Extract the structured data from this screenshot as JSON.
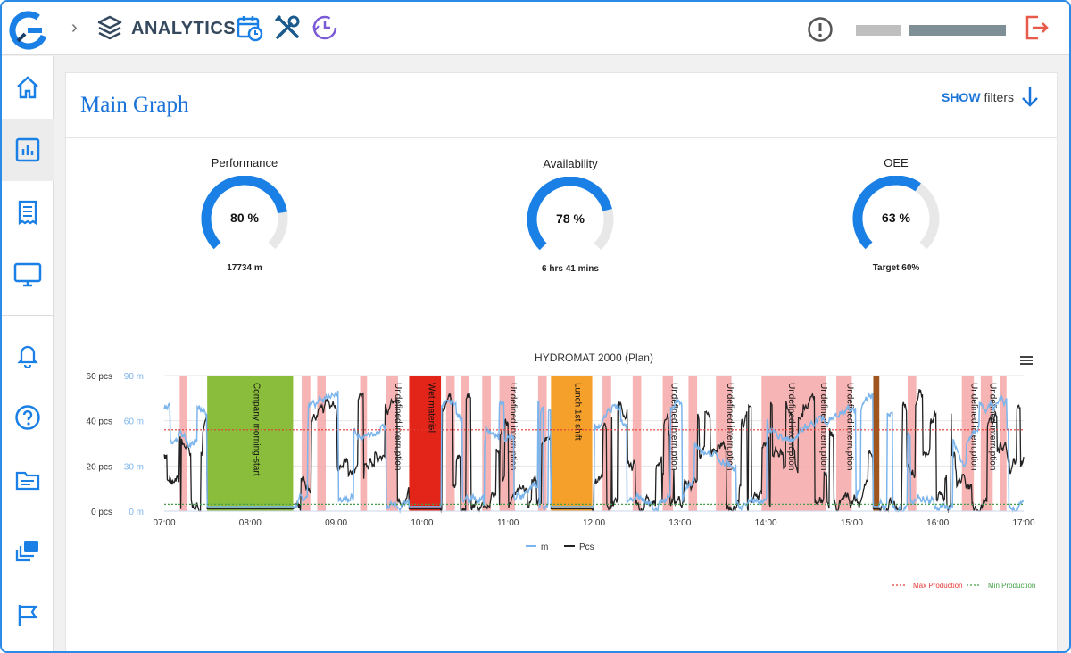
{
  "header": {
    "breadcrumb_arrow": "›",
    "section": "ANALYTICS"
  },
  "card": {
    "title": "Main Graph",
    "filters_show": "SHOW",
    "filters_label": "filters"
  },
  "gauges": [
    {
      "label": "Performance",
      "value": 80,
      "value_text": "80 %",
      "sub": "17734 m"
    },
    {
      "label": "Availability",
      "value": 78,
      "value_text": "78 %",
      "sub": "6 hrs 41 mins"
    },
    {
      "label": "OEE",
      "value": 63,
      "value_text": "63 %",
      "sub": "Target 60%"
    }
  ],
  "colors": {
    "accent": "#1a73d9",
    "gauge_fill": "#1a80e6",
    "gauge_track": "#e8e8e8",
    "series_m": "#7cb5ec",
    "series_pcs": "#222222",
    "interruption": "#f4a7a7",
    "morning_start": "#8abd3c",
    "wet_material": "#e32418",
    "lunch": "#f5a02a",
    "brown_event": "#a0551e",
    "max_production": "#e53935",
    "min_production": "#43a047"
  },
  "chart_data": {
    "type": "line",
    "title": "HYDROMAT 2000 (Plan)",
    "x_ticks": [
      "07:00",
      "08:00",
      "09:00",
      "10:00",
      "11:00",
      "12:00",
      "13:00",
      "14:00",
      "15:00",
      "16:00",
      "17:00"
    ],
    "y_left_ticks": [
      "0 pcs",
      "20 pcs",
      "40 pcs",
      "60 pcs"
    ],
    "y_right_ticks": [
      "0 m",
      "30 m",
      "60 m",
      "90 m"
    ],
    "ylim_pcs": [
      0,
      60
    ],
    "ylim_m": [
      0,
      90
    ],
    "max_production_pcs": 36,
    "min_production_pcs": 3,
    "series": [
      {
        "name": "m",
        "color": "#7cb5ec"
      },
      {
        "name": "Pcs",
        "color": "#222222"
      }
    ],
    "bands": [
      {
        "start": 7.18,
        "end": 7.27,
        "kind": "interruption",
        "label": ""
      },
      {
        "start": 7.5,
        "end": 8.5,
        "kind": "morning",
        "label": "Company morning-start"
      },
      {
        "start": 8.6,
        "end": 8.7,
        "kind": "interruption",
        "label": ""
      },
      {
        "start": 8.78,
        "end": 8.88,
        "kind": "interruption",
        "label": ""
      },
      {
        "start": 9.28,
        "end": 9.36,
        "kind": "interruption",
        "label": ""
      },
      {
        "start": 9.58,
        "end": 9.72,
        "kind": "interruption",
        "label": "Undefined interruption"
      },
      {
        "start": 9.85,
        "end": 10.22,
        "kind": "wet",
        "label": "Wet material"
      },
      {
        "start": 10.28,
        "end": 10.38,
        "kind": "interruption",
        "label": ""
      },
      {
        "start": 10.45,
        "end": 10.55,
        "kind": "interruption",
        "label": ""
      },
      {
        "start": 10.7,
        "end": 10.8,
        "kind": "interruption",
        "label": ""
      },
      {
        "start": 10.9,
        "end": 11.08,
        "kind": "interruption",
        "label": "Undefined interruption"
      },
      {
        "start": 11.35,
        "end": 11.45,
        "kind": "interruption",
        "label": ""
      },
      {
        "start": 11.5,
        "end": 11.98,
        "kind": "lunch",
        "label": "Lunch 1st shift"
      },
      {
        "start": 12.1,
        "end": 12.2,
        "kind": "interruption",
        "label": ""
      },
      {
        "start": 12.45,
        "end": 12.55,
        "kind": "interruption",
        "label": ""
      },
      {
        "start": 12.8,
        "end": 12.92,
        "kind": "interruption",
        "label": "Undefined interruption"
      },
      {
        "start": 13.1,
        "end": 13.2,
        "kind": "interruption",
        "label": ""
      },
      {
        "start": 13.42,
        "end": 13.6,
        "kind": "interruption",
        "label": "Undefined interruption"
      },
      {
        "start": 13.95,
        "end": 14.5,
        "kind": "interruption",
        "label": "Undefined interruption"
      },
      {
        "start": 14.5,
        "end": 14.7,
        "kind": "interruption",
        "label": "Undefined interruption"
      },
      {
        "start": 14.82,
        "end": 15.0,
        "kind": "interruption",
        "label": "Undefined interruption"
      },
      {
        "start": 15.25,
        "end": 15.32,
        "kind": "brown",
        "label": ""
      },
      {
        "start": 15.65,
        "end": 15.75,
        "kind": "interruption",
        "label": ""
      },
      {
        "start": 16.28,
        "end": 16.42,
        "kind": "interruption",
        "label": "Undefined interruption"
      },
      {
        "start": 16.5,
        "end": 16.64,
        "kind": "interruption",
        "label": "Undefined interruption"
      },
      {
        "start": 16.72,
        "end": 16.8,
        "kind": "interruption",
        "label": ""
      }
    ],
    "legend": [
      "m",
      "Pcs"
    ],
    "legend_position": "bottom-center",
    "reference_legend": [
      "Max Production",
      "Min Production"
    ],
    "grid": true
  },
  "icons": {
    "logo": "brand-logo-icon",
    "section": "layers-icon",
    "calendar": "calendar-clock-icon",
    "tools": "tools-icon",
    "history": "history-icon",
    "alert": "alert-icon",
    "logout": "logout-icon"
  }
}
